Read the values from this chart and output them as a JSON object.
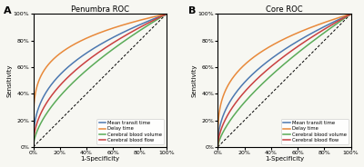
{
  "title_A": "Penumbra ROC",
  "title_B": "Core ROC",
  "label_A": "A",
  "label_B": "B",
  "xlabel": "1-Specificity",
  "ylabel": "Sensitivity",
  "legend_labels": [
    "Mean transit time",
    "Delay time",
    "Cerebral blood volume",
    "Cerebral blood flow"
  ],
  "colors_pen": [
    "#4c78b0",
    "#e8893a",
    "#5aab58",
    "#c94040"
  ],
  "colors_core": [
    "#4c78b0",
    "#e8893a",
    "#5aab58",
    "#c94040"
  ],
  "background": "#f7f7f2",
  "pen_powers": [
    0.38,
    0.22,
    0.6,
    0.48
  ],
  "core_powers": [
    0.45,
    0.3,
    0.68,
    0.55
  ],
  "diag_color": "#333333"
}
